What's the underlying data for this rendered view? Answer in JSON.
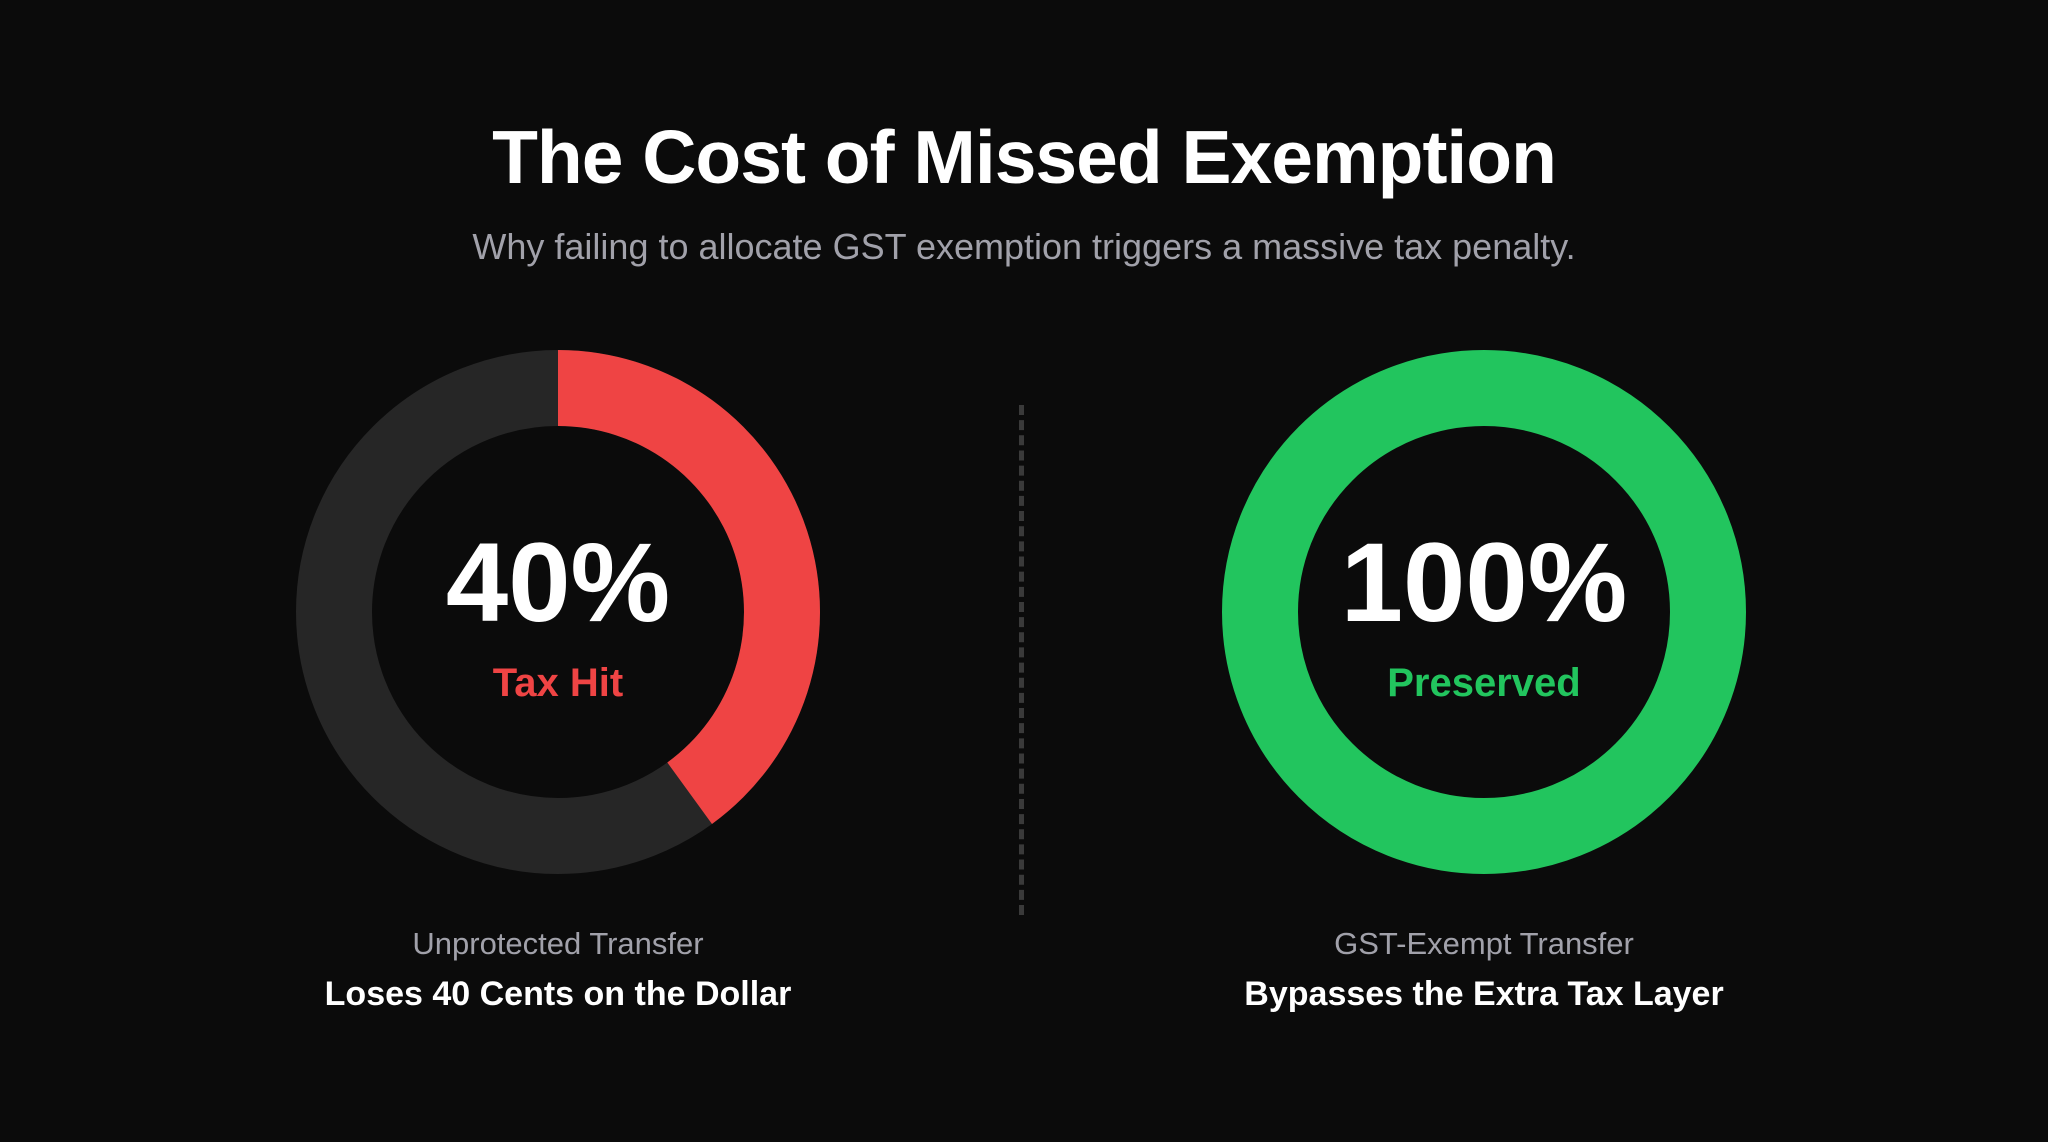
{
  "header": {
    "title": "The Cost of Missed Exemption",
    "subtitle": "Why failing to allocate GST exemption triggers a massive tax penalty."
  },
  "colors": {
    "background": "#0b0b0b",
    "track": "#262626",
    "tax_hit": "#ef4444",
    "preserved": "#22c55e",
    "muted_text": "#a1a1aa"
  },
  "chart_data": [
    {
      "type": "pie",
      "variant": "donut",
      "center_value": "40%",
      "center_label": "Tax Hit",
      "value_percent": 40,
      "remainder_percent": 60,
      "value_color": "#ef4444",
      "track_color": "#262626",
      "caption": "Unprotected Transfer",
      "headline": "Loses 40 Cents on the Dollar"
    },
    {
      "type": "pie",
      "variant": "donut",
      "center_value": "100%",
      "center_label": "Preserved",
      "value_percent": 100,
      "remainder_percent": 0,
      "value_color": "#22c55e",
      "track_color": "#262626",
      "caption": "GST-Exempt Transfer",
      "headline": "Bypasses the Extra Tax Layer"
    }
  ]
}
